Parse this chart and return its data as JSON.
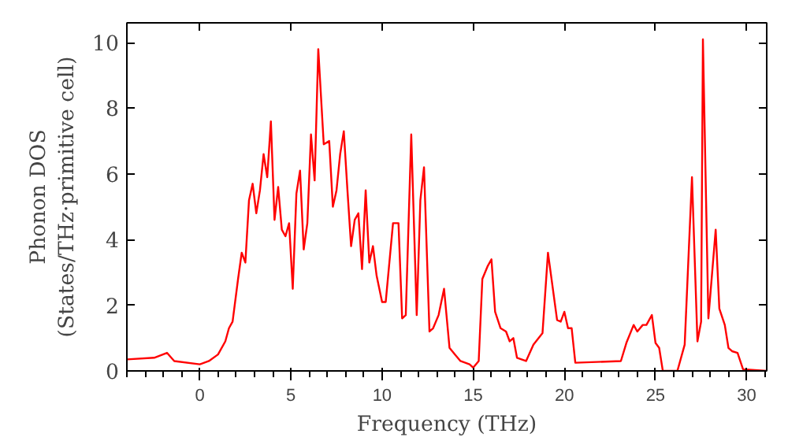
{
  "chart_data": {
    "type": "line",
    "xlabel": "Frequency (THz)",
    "ylabel": "Phonon DOS\n(States/THz·primitive cell)",
    "xlim": [
      -4,
      31.1
    ],
    "ylim": [
      0,
      10.6
    ],
    "xticks": [
      0,
      5,
      10,
      15,
      20,
      25,
      30
    ],
    "yticks": [
      0,
      2,
      4,
      6,
      8,
      10
    ],
    "grid": false,
    "marker": "none",
    "line_style": "solid",
    "series": [
      {
        "color": "#ff0000",
        "x": [
          -4,
          -2.5,
          -1.8,
          -1.4,
          0,
          0.5,
          1,
          1.4,
          1.6,
          1.8,
          2.1,
          2.3,
          2.5,
          2.7,
          2.9,
          3.1,
          3.3,
          3.5,
          3.7,
          3.9,
          4.1,
          4.3,
          4.5,
          4.7,
          4.9,
          5.1,
          5.3,
          5.5,
          5.7,
          5.9,
          6.1,
          6.3,
          6.5,
          6.8,
          7.1,
          7.3,
          7.5,
          7.7,
          7.9,
          8.1,
          8.3,
          8.5,
          8.7,
          8.9,
          9.1,
          9.3,
          9.5,
          9.7,
          10.0,
          10.2,
          10.6,
          10.9,
          11.1,
          11.3,
          11.6,
          11.9,
          12.1,
          12.3,
          12.6,
          12.8,
          13.1,
          13.4,
          13.7,
          14.0,
          14.3,
          14.8,
          15.0,
          15.3,
          15.5,
          15.8,
          16.0,
          16.2,
          16.5,
          16.8,
          17.0,
          17.2,
          17.4,
          17.9,
          18.3,
          18.8,
          19.1,
          19.6,
          19.8,
          20.0,
          20.2,
          20.4,
          20.6,
          23.1,
          23.4,
          23.8,
          24.0,
          24.3,
          24.5,
          24.8,
          25.0,
          25.2,
          25.4,
          26.2,
          26.6,
          27.0,
          27.3,
          27.5,
          27.6,
          27.9,
          28.3,
          28.5,
          28.8,
          29.0,
          29.2,
          29.5,
          29.8,
          31.1
        ],
        "values": [
          0.35,
          0.4,
          0.55,
          0.3,
          0.2,
          0.3,
          0.5,
          0.9,
          1.3,
          1.5,
          2.8,
          3.6,
          3.3,
          5.2,
          5.7,
          4.8,
          5.5,
          6.6,
          5.9,
          7.6,
          4.6,
          5.6,
          4.3,
          4.1,
          4.5,
          2.5,
          5.4,
          6.1,
          3.7,
          4.5,
          7.2,
          5.8,
          9.8,
          6.9,
          7.0,
          5.0,
          5.5,
          6.6,
          7.3,
          5.5,
          3.8,
          4.6,
          4.8,
          3.1,
          5.5,
          3.3,
          3.8,
          2.9,
          2.1,
          2.1,
          4.5,
          4.5,
          1.6,
          1.7,
          7.2,
          1.7,
          5.2,
          6.2,
          1.2,
          1.3,
          1.7,
          2.5,
          0.7,
          0.5,
          0.3,
          0.2,
          0.1,
          0.3,
          2.8,
          3.2,
          3.4,
          1.8,
          1.3,
          1.2,
          0.9,
          1.0,
          0.4,
          0.3,
          0.8,
          1.15,
          3.6,
          1.55,
          1.5,
          1.8,
          1.3,
          1.3,
          0.25,
          0.3,
          0.85,
          1.4,
          1.2,
          1.4,
          1.4,
          1.7,
          0.85,
          0.7,
          0,
          0,
          0.8,
          5.9,
          0.9,
          1.5,
          10.1,
          1.6,
          4.3,
          1.9,
          1.4,
          0.7,
          0.6,
          0.55,
          0.05,
          0
        ]
      }
    ]
  }
}
